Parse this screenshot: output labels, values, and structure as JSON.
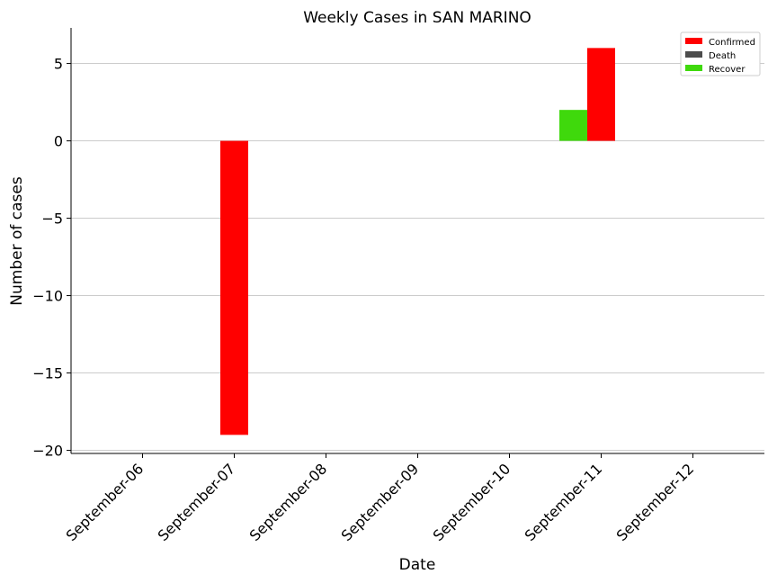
{
  "chart_data": {
    "type": "bar",
    "title": "Weekly Cases in SAN MARINO",
    "xlabel": "Date",
    "ylabel": "Number of cases",
    "categories": [
      "September-06",
      "September-07",
      "September-08",
      "September-09",
      "September-10",
      "September-11",
      "September-12"
    ],
    "ylim": [
      -20.2,
      7.3
    ],
    "yticks": [
      5,
      0,
      -5,
      -10,
      -15,
      -20
    ],
    "ytick_labels": [
      "5",
      "0",
      "−5",
      "−10",
      "−15",
      "−20"
    ],
    "grid": "horizontal",
    "legend_position": "top-right",
    "series": [
      {
        "name": "Recover",
        "color": "#3fd90c",
        "values": [
          0,
          0,
          0,
          0,
          0,
          2,
          0
        ]
      },
      {
        "name": "Confirmed",
        "color": "#ff0000",
        "values": [
          0,
          -19,
          0,
          0,
          0,
          6,
          0
        ]
      },
      {
        "name": "Death",
        "color": "#4c4c4c",
        "values": [
          0,
          0,
          0,
          0,
          0,
          0,
          0
        ]
      }
    ],
    "legend": [
      {
        "label": "Confirmed",
        "color": "#ff0000"
      },
      {
        "label": "Death",
        "color": "#4c4c4c"
      },
      {
        "label": "Recover",
        "color": "#3fd90c"
      }
    ]
  }
}
